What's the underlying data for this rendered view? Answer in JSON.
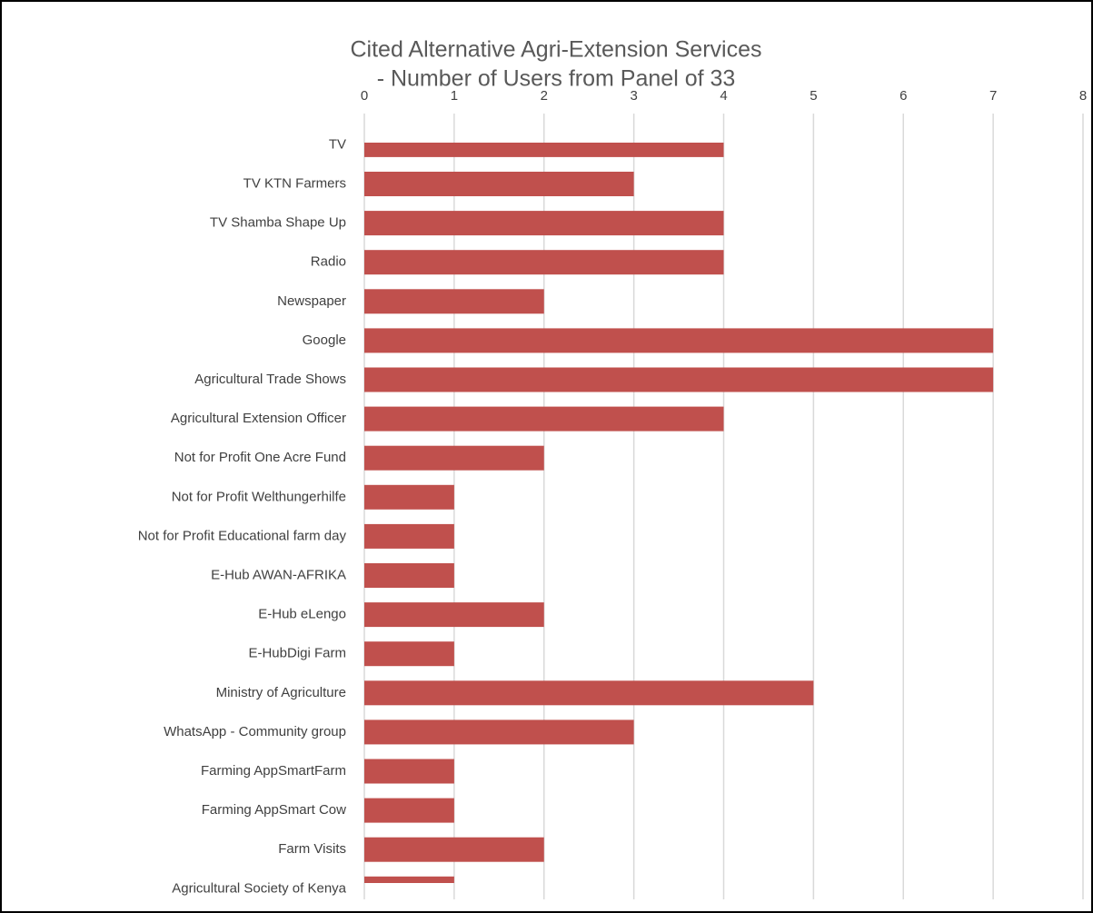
{
  "chart_data": {
    "type": "bar",
    "orientation": "horizontal",
    "title": [
      "Cited Alternative Agri-Extension Services",
      "- Number of Users from Panel of 33"
    ],
    "categories": [
      "TV",
      "TV KTN Farmers",
      "TV Shamba Shape Up",
      "Radio",
      "Newspaper",
      "Google",
      "Agricultural Trade Shows",
      "Agricultural Extension Officer",
      "Not for Profit One Acre Fund",
      "Not for Profit Welthungerhilfe",
      "Not for Profit Educational farm day",
      "E-Hub AWAN-AFRIKA",
      "E-Hub eLengo",
      "E-HubDigi Farm",
      "Ministry of Agriculture",
      "WhatsApp - Community group",
      "Farming AppSmartFarm",
      "Farming AppSmart Cow",
      "Farm Visits",
      "Agricultural Society of Kenya"
    ],
    "values": [
      4,
      3,
      4,
      4,
      2,
      7,
      7,
      4,
      2,
      1,
      1,
      1,
      2,
      1,
      5,
      3,
      1,
      1,
      2,
      1
    ],
    "color": "#c0504d",
    "xlim": [
      0,
      8
    ],
    "xticks": [
      0,
      1,
      2,
      3,
      4,
      5,
      6,
      7,
      8
    ],
    "grid": true
  }
}
